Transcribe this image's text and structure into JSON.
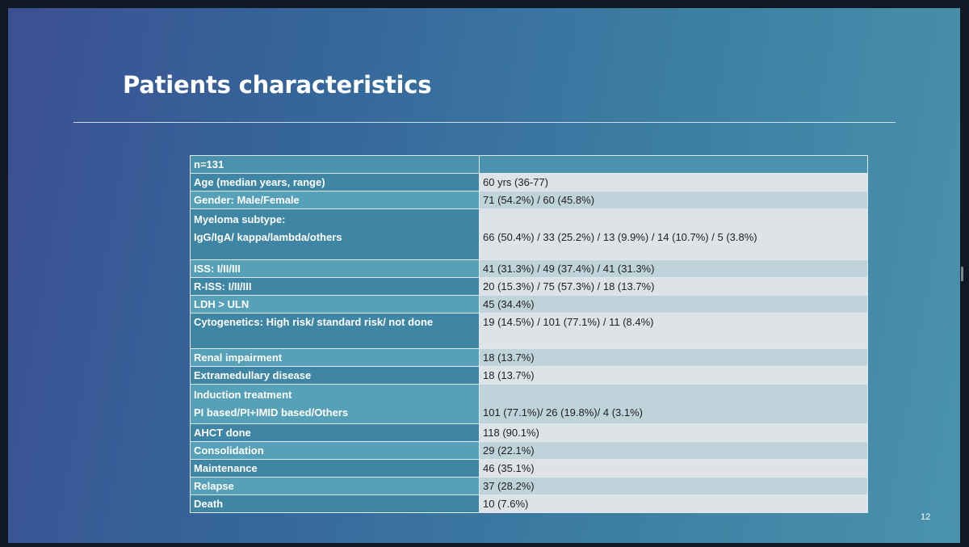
{
  "slide": {
    "title": "Patients characteristics",
    "page_number": "12"
  },
  "table": {
    "header": {
      "label": "n=131",
      "value": ""
    },
    "rows": [
      {
        "label": "Age (median years, range)",
        "value": "60 yrs (36-77)"
      },
      {
        "label": "Gender: Male/Female",
        "value": "71 (54.2%) / 60 (45.8%)"
      },
      {
        "label_line1": "Myeloma subtype:",
        "label_line2": "IgG/IgA/ kappa/lambda/others",
        "value": "66 (50.4%) / 33 (25.2%) / 13 (9.9%) / 14 (10.7%) / 5 (3.8%)"
      },
      {
        "label": "ISS: I/II/III",
        "value": "41 (31.3%) / 49 (37.4%) / 41 (31.3%)"
      },
      {
        "label": "R-ISS: I/II/III",
        "value": "20 (15.3%) / 75 (57.3%) / 18 (13.7%)"
      },
      {
        "label": "LDH > ULN",
        "value": "45 (34.4%)"
      },
      {
        "label": "Cytogenetics: High risk/ standard risk/ not done",
        "value": "19 (14.5%) / 101 (77.1%) / 11 (8.4%)"
      },
      {
        "label": "Renal impairment",
        "value": "18 (13.7%)"
      },
      {
        "label": "Extramedullary disease",
        "value": "18 (13.7%)"
      },
      {
        "label_line1": "Induction treatment",
        "label_line2": "PI based/PI+IMID based/Others",
        "value": "101 (77.1%)/ 26 (19.8%)/ 4 (3.1%)"
      },
      {
        "label": "AHCT done",
        "value": "118 (90.1%)"
      },
      {
        "label": "Consolidation",
        "value": "29 (22.1%)"
      },
      {
        "label": "Maintenance",
        "value": "46 (35.1%)"
      },
      {
        "label": "Relapse",
        "value": "37 (28.2%)"
      },
      {
        "label": "Death",
        "value": "10 (7.6%)"
      }
    ]
  }
}
